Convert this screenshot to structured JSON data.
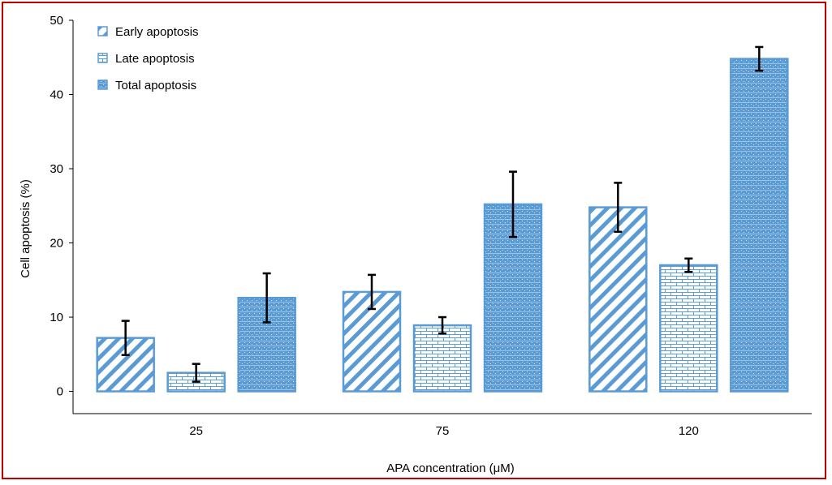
{
  "colors": {
    "border": "#c00000",
    "bar_stroke": "#5b9bd5",
    "bar_fill": "#5b9bd5",
    "axis": "#000000"
  },
  "chart_data": {
    "type": "bar",
    "xlabel": "APA concentration (μM)",
    "ylabel": "Cell apoptosis (%)",
    "ylim": [
      -3,
      50
    ],
    "yticks": [
      0,
      10,
      20,
      30,
      40,
      50
    ],
    "categories": [
      "25",
      "75",
      "120"
    ],
    "series": [
      {
        "name": "Early apoptosis",
        "pattern": "diagonal-hatch",
        "values": [
          7.2,
          13.4,
          24.8
        ],
        "errors": [
          2.3,
          2.3,
          3.3
        ]
      },
      {
        "name": "Late apoptosis",
        "pattern": "brick",
        "values": [
          2.5,
          8.9,
          17.0
        ],
        "errors": [
          1.2,
          1.1,
          0.9
        ]
      },
      {
        "name": "Total apoptosis",
        "pattern": "dense-dots",
        "values": [
          12.6,
          25.2,
          44.8
        ],
        "errors": [
          3.3,
          4.4,
          1.6
        ]
      }
    ],
    "legend_position": "top-left",
    "grid": false
  }
}
